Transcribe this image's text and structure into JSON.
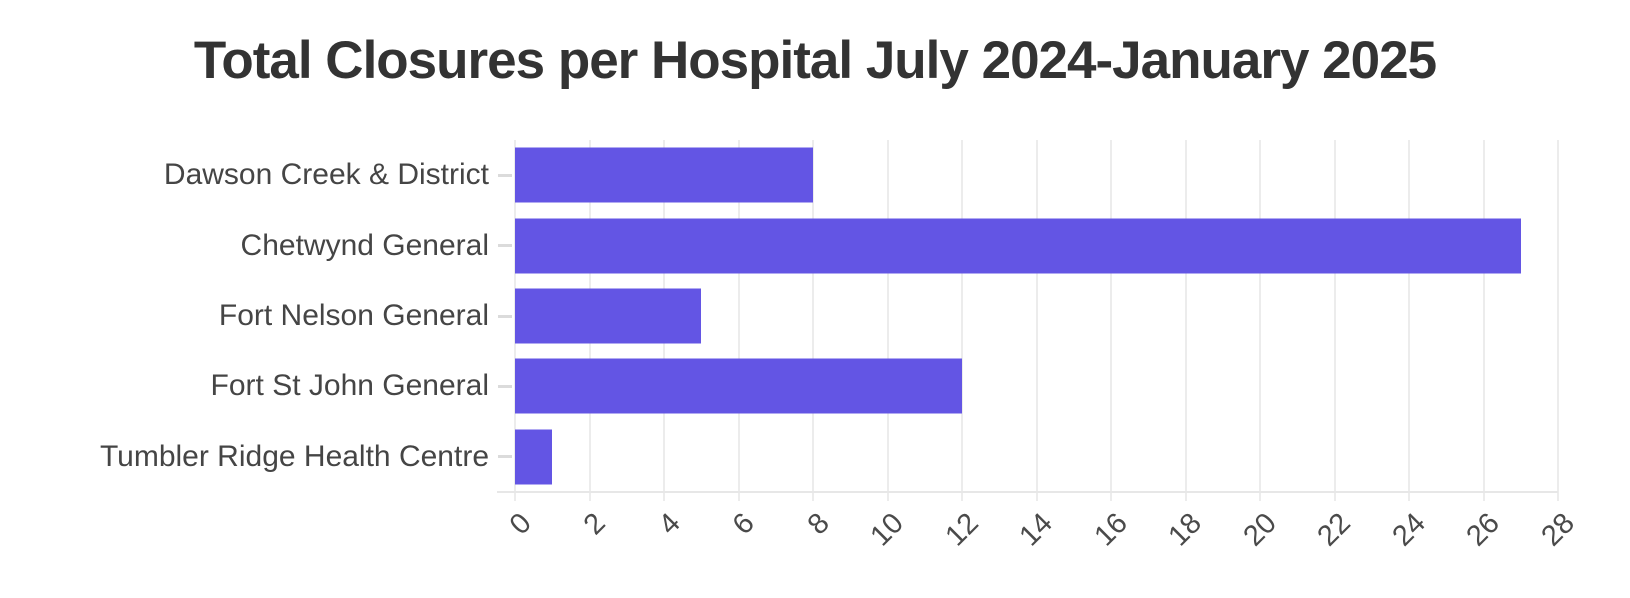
{
  "title": "Total Closures per Hospital July 2024-January 2025",
  "colors": {
    "bar": "#6355e4",
    "title_text": "#333333",
    "category_text": "#454545",
    "tick_text": "#4a4a4a",
    "gridline": "#ececec",
    "axis_line": "#e7e7e7",
    "background": "#ffffff"
  },
  "chart_data": {
    "type": "bar",
    "orientation": "horizontal",
    "title": "Total Closures per Hospital July 2024-January 2025",
    "categories": [
      "Dawson Creek & District",
      "Chetwynd General",
      "Fort Nelson General",
      "Fort St John General",
      "Tumbler Ridge Health Centre"
    ],
    "values": [
      8,
      27,
      5,
      12,
      1
    ],
    "xlabel": "",
    "ylabel": "",
    "xlim": [
      0,
      28
    ],
    "x_ticks": [
      0,
      2,
      4,
      6,
      8,
      10,
      12,
      14,
      16,
      18,
      20,
      22,
      24,
      26,
      28
    ],
    "x_tick_rotation_deg": -45,
    "grid": "vertical-on",
    "legend": "none"
  }
}
